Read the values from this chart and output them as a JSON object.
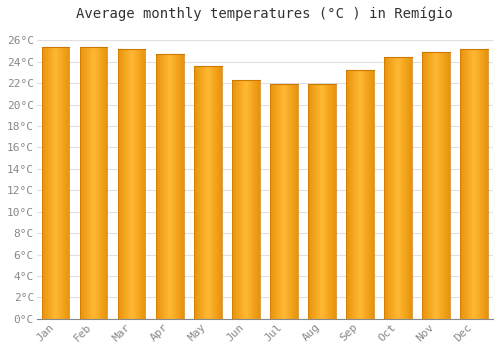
{
  "title": "Average monthly temperatures (°C ) in Remígio",
  "months": [
    "Jan",
    "Feb",
    "Mar",
    "Apr",
    "May",
    "Jun",
    "Jul",
    "Aug",
    "Sep",
    "Oct",
    "Nov",
    "Dec"
  ],
  "temperatures": [
    25.4,
    25.4,
    25.2,
    24.7,
    23.6,
    22.3,
    21.9,
    21.9,
    23.2,
    24.4,
    24.9,
    25.2
  ],
  "bar_color_center": "#FFB833",
  "bar_color_edge": "#E8940A",
  "ylim": [
    0,
    27
  ],
  "yticks": [
    0,
    2,
    4,
    6,
    8,
    10,
    12,
    14,
    16,
    18,
    20,
    22,
    24,
    26
  ],
  "background_color": "#FFFFFF",
  "plot_bg_color": "#FFFFFF",
  "grid_color": "#E0E0E0",
  "title_fontsize": 10,
  "tick_fontsize": 8,
  "tick_color": "#888888",
  "title_color": "#333333",
  "bar_width": 0.72
}
